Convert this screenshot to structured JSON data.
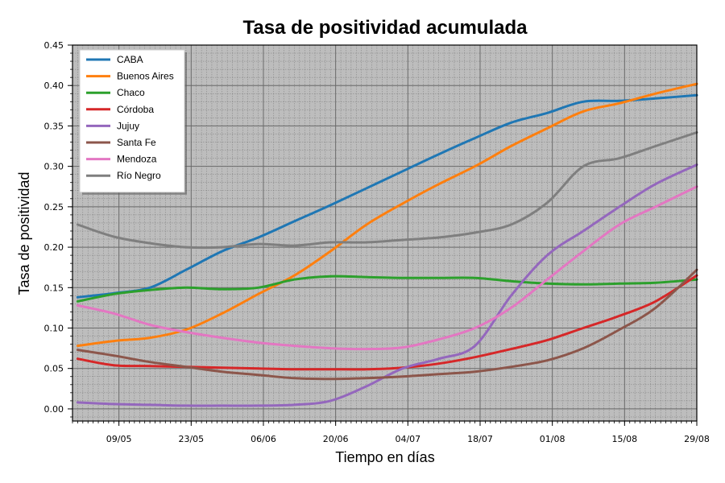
{
  "chart_data": {
    "type": "line",
    "title": "Tasa de positividad acumulada",
    "xlabel": "Tiempo en días",
    "ylabel": "Tasa de positividad",
    "x_tick_labels": [
      "09/05",
      "23/05",
      "06/06",
      "20/06",
      "04/07",
      "18/07",
      "01/08",
      "15/08",
      "29/08"
    ],
    "y_tick_labels": [
      "0.00",
      "0.05",
      "0.10",
      "0.15",
      "0.20",
      "0.25",
      "0.30",
      "0.35",
      "0.40",
      "0.45"
    ],
    "ylim": [
      -0.015,
      0.45
    ],
    "x_dates": [
      "01/05",
      "08/05",
      "15/05",
      "22/05",
      "29/05",
      "05/06",
      "12/06",
      "19/06",
      "26/06",
      "03/07",
      "10/07",
      "17/07",
      "24/07",
      "31/07",
      "07/08",
      "14/08",
      "21/08",
      "29/08"
    ],
    "grid": true,
    "legend_position": "top-left",
    "series": [
      {
        "name": "CABA",
        "color": "#1f77b4",
        "values": [
          0.138,
          0.143,
          0.15,
          0.172,
          0.195,
          0.212,
          0.232,
          0.252,
          0.273,
          0.294,
          0.315,
          0.335,
          0.354,
          0.366,
          0.38,
          0.381,
          0.384,
          0.388
        ]
      },
      {
        "name": "Buenos Aires",
        "color": "#ff7f0e",
        "values": [
          0.078,
          0.084,
          0.088,
          0.098,
          0.118,
          0.142,
          0.165,
          0.195,
          0.228,
          0.254,
          0.278,
          0.3,
          0.325,
          0.347,
          0.368,
          0.378,
          0.39,
          0.402
        ]
      },
      {
        "name": "Chaco",
        "color": "#2ca02c",
        "values": [
          0.133,
          0.142,
          0.147,
          0.15,
          0.148,
          0.15,
          0.16,
          0.164,
          0.163,
          0.162,
          0.162,
          0.162,
          0.158,
          0.155,
          0.154,
          0.155,
          0.156,
          0.16
        ]
      },
      {
        "name": "Córdoba",
        "color": "#d62728",
        "values": [
          0.062,
          0.054,
          0.053,
          0.052,
          0.051,
          0.05,
          0.049,
          0.049,
          0.049,
          0.051,
          0.056,
          0.064,
          0.074,
          0.085,
          0.1,
          0.115,
          0.133,
          0.165
        ]
      },
      {
        "name": "Jujuy",
        "color": "#9467bd",
        "values": [
          0.008,
          0.006,
          0.005,
          0.004,
          0.004,
          0.004,
          0.005,
          0.01,
          0.028,
          0.05,
          0.062,
          0.078,
          0.14,
          0.19,
          0.22,
          0.25,
          0.278,
          0.302
        ]
      },
      {
        "name": "Santa Fe",
        "color": "#8c564b",
        "values": [
          0.073,
          0.066,
          0.058,
          0.052,
          0.046,
          0.042,
          0.038,
          0.037,
          0.038,
          0.04,
          0.043,
          0.046,
          0.052,
          0.06,
          0.075,
          0.098,
          0.125,
          0.172
        ]
      },
      {
        "name": "Mendoza",
        "color": "#e377c2",
        "values": [
          0.128,
          0.118,
          0.104,
          0.095,
          0.088,
          0.082,
          0.078,
          0.075,
          0.074,
          0.076,
          0.086,
          0.1,
          0.125,
          0.16,
          0.195,
          0.228,
          0.25,
          0.275
        ]
      },
      {
        "name": "Río Negro",
        "color": "#7f7f7f",
        "values": [
          0.228,
          0.213,
          0.205,
          0.2,
          0.2,
          0.204,
          0.202,
          0.206,
          0.206,
          0.209,
          0.212,
          0.218,
          0.228,
          0.255,
          0.3,
          0.31,
          0.325,
          0.342
        ]
      }
    ]
  }
}
